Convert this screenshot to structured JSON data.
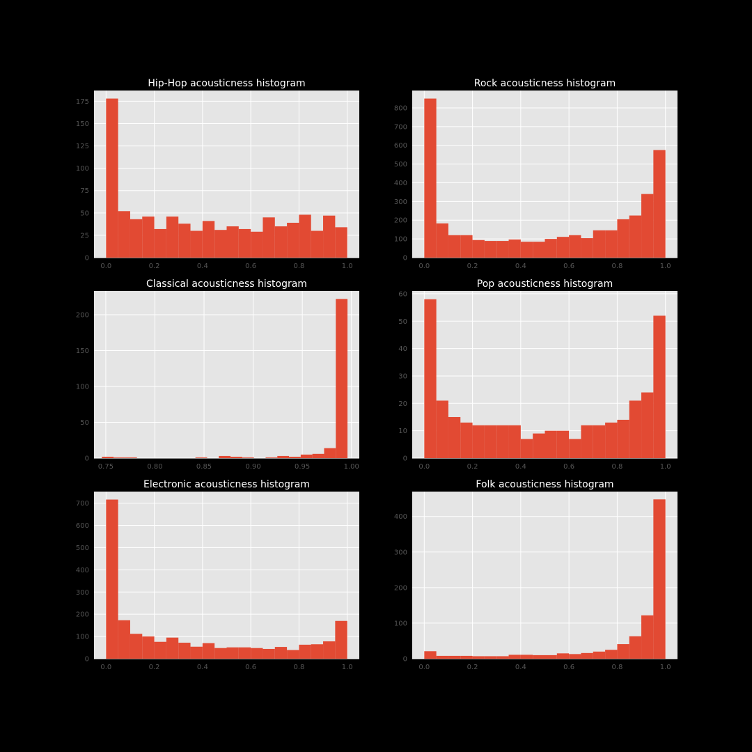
{
  "style": {
    "figure_background": "#000000",
    "axes_background": "#e5e5e5",
    "bar_color": "#e24a33",
    "grid_color": "#ffffff",
    "tick_color": "#555555",
    "title_color": "#ffffff"
  },
  "chart_data": [
    {
      "type": "bar",
      "title": "Hip-Hop acousticness histogram",
      "xlim": [
        -0.05,
        1.05
      ],
      "ylim": [
        0,
        187
      ],
      "xticks": [
        0,
        0.2,
        0.4,
        0.6,
        0.8,
        1.0
      ],
      "xtick_labels": [
        "0.0",
        "0.2",
        "0.4",
        "0.6",
        "0.8",
        "1.0"
      ],
      "yticks": [
        0,
        25,
        50,
        75,
        100,
        125,
        150,
        175
      ],
      "ytick_labels": [
        "0",
        "25",
        "50",
        "75",
        "100",
        "125",
        "150",
        "175"
      ],
      "bin_start": 0.0,
      "bin_end": 1.0,
      "values": [
        178,
        52,
        43,
        46,
        32,
        46,
        38,
        30,
        41,
        31,
        35,
        32,
        29,
        45,
        35,
        39,
        48,
        30,
        47,
        34
      ],
      "grid": true
    },
    {
      "type": "bar",
      "title": "Rock acousticness histogram",
      "xlim": [
        -0.05,
        1.05
      ],
      "ylim": [
        0,
        893
      ],
      "xticks": [
        0,
        0.2,
        0.4,
        0.6,
        0.8,
        1.0
      ],
      "xtick_labels": [
        "0.0",
        "0.2",
        "0.4",
        "0.6",
        "0.8",
        "1.0"
      ],
      "yticks": [
        0,
        100,
        200,
        300,
        400,
        500,
        600,
        700,
        800
      ],
      "ytick_labels": [
        "0",
        "100",
        "200",
        "300",
        "400",
        "500",
        "600",
        "700",
        "800"
      ],
      "bin_start": 0.0,
      "bin_end": 1.0,
      "values": [
        850,
        183,
        120,
        120,
        94,
        89,
        89,
        97,
        85,
        85,
        100,
        111,
        120,
        104,
        146,
        146,
        205,
        225,
        340,
        575
      ],
      "grid": true
    },
    {
      "type": "bar",
      "title": "Classical acousticness histogram",
      "xlim": [
        0.738,
        1.008
      ],
      "ylim": [
        0,
        233
      ],
      "xticks": [
        0.75,
        0.8,
        0.85,
        0.9,
        0.95,
        1.0
      ],
      "xtick_labels": [
        "0.75",
        "0.80",
        "0.85",
        "0.90",
        "0.95",
        "1.00"
      ],
      "yticks": [
        0,
        50,
        100,
        150,
        200
      ],
      "ytick_labels": [
        "0",
        "50",
        "100",
        "150",
        "200"
      ],
      "bin_start": 0.746,
      "bin_end": 0.996,
      "values": [
        2,
        1,
        1,
        0,
        0,
        0,
        0,
        0,
        1,
        0,
        3,
        2,
        1,
        0,
        1,
        3,
        2,
        5,
        6,
        14,
        222
      ],
      "grid": true
    },
    {
      "type": "bar",
      "title": "Pop acousticness histogram",
      "xlim": [
        -0.05,
        1.05
      ],
      "ylim": [
        0,
        61
      ],
      "xticks": [
        0,
        0.2,
        0.4,
        0.6,
        0.8,
        1.0
      ],
      "xtick_labels": [
        "0.0",
        "0.2",
        "0.4",
        "0.6",
        "0.8",
        "1.0"
      ],
      "yticks": [
        0,
        10,
        20,
        30,
        40,
        50,
        60
      ],
      "ytick_labels": [
        "0",
        "10",
        "20",
        "30",
        "40",
        "50",
        "60"
      ],
      "bin_start": 0.0,
      "bin_end": 1.0,
      "values": [
        58,
        21,
        15,
        13,
        12,
        12,
        12,
        12,
        7,
        9,
        10,
        10,
        7,
        12,
        12,
        13,
        14,
        21,
        24,
        52
      ],
      "grid": true
    },
    {
      "type": "bar",
      "title": "Electronic acousticness histogram",
      "xlim": [
        -0.05,
        1.05
      ],
      "ylim": [
        0,
        752
      ],
      "xticks": [
        0,
        0.2,
        0.4,
        0.6,
        0.8,
        1.0
      ],
      "xtick_labels": [
        "0.0",
        "0.2",
        "0.4",
        "0.6",
        "0.8",
        "1.0"
      ],
      "yticks": [
        0,
        100,
        200,
        300,
        400,
        500,
        600,
        700
      ],
      "ytick_labels": [
        "0",
        "100",
        "200",
        "300",
        "400",
        "500",
        "600",
        "700"
      ],
      "bin_start": 0.0,
      "bin_end": 1.0,
      "values": [
        716,
        173,
        112,
        100,
        76,
        95,
        72,
        54,
        70,
        48,
        51,
        51,
        48,
        44,
        53,
        39,
        63,
        65,
        78,
        170
      ],
      "grid": true
    },
    {
      "type": "bar",
      "title": "Folk acousticness histogram",
      "xlim": [
        -0.05,
        1.05
      ],
      "ylim": [
        0,
        470
      ],
      "xticks": [
        0,
        0.2,
        0.4,
        0.6,
        0.8,
        1.0
      ],
      "xtick_labels": [
        "0.0",
        "0.2",
        "0.4",
        "0.6",
        "0.8",
        "1.0"
      ],
      "yticks": [
        0,
        100,
        200,
        300,
        400
      ],
      "ytick_labels": [
        "0",
        "100",
        "200",
        "300",
        "400"
      ],
      "bin_start": 0.0,
      "bin_end": 1.0,
      "values": [
        21,
        8,
        8,
        8,
        7,
        7,
        7,
        11,
        11,
        10,
        10,
        15,
        13,
        16,
        20,
        25,
        41,
        63,
        122,
        448
      ],
      "grid": true
    }
  ]
}
